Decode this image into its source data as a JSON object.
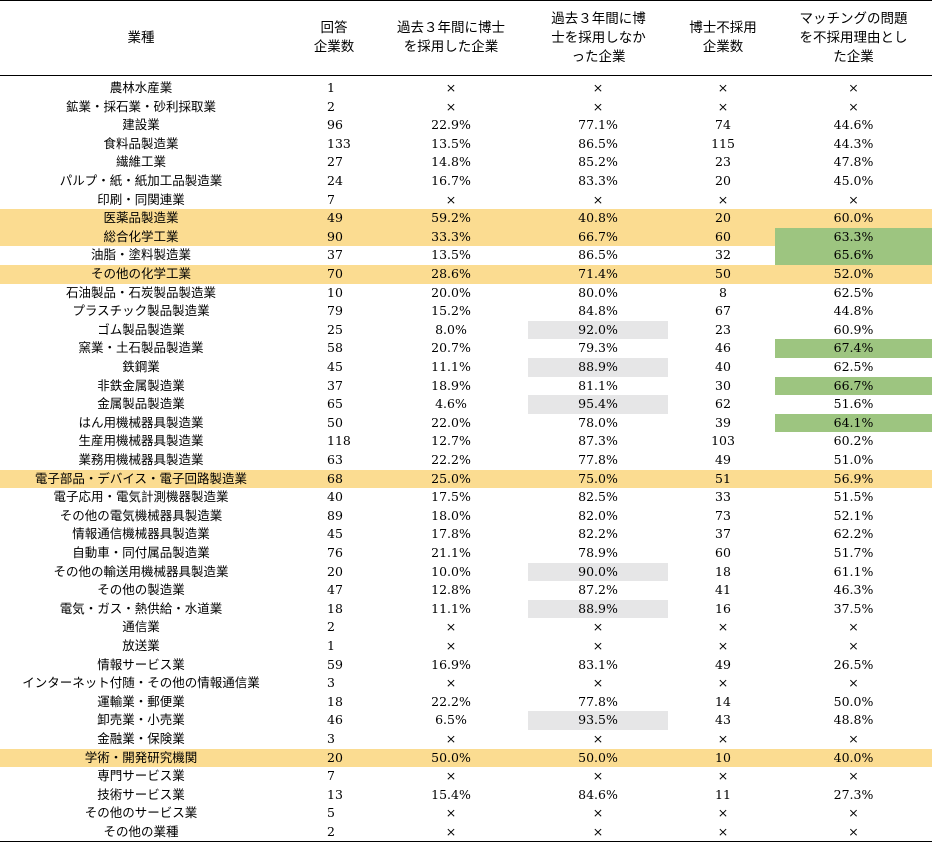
{
  "headers": {
    "industry": "業種",
    "respondents": "回答\n企業数",
    "hired": "過去３年間に博士\nを採用した企業",
    "not_hired": "過去３年間に博\n士を採用しなか\nった企業",
    "non_hiring_count": "博士不採用\n企業数",
    "matching_reason": "マッチングの問題\nを不採用理由とし\nた企業"
  },
  "colors": {
    "highlight_row": "#fbdc91",
    "gray_cell": "#e6e6e7",
    "green_cell": "#9dc580"
  },
  "rows": [
    {
      "name": "農林水産業",
      "n": "1",
      "hired": "×",
      "not_hired": "×",
      "nh": "×",
      "match": "×"
    },
    {
      "name": "鉱業・採石業・砂利採取業",
      "n": "2",
      "hired": "×",
      "not_hired": "×",
      "nh": "×",
      "match": "×"
    },
    {
      "name": "建設業",
      "n": "96",
      "hired": "22.9%",
      "not_hired": "77.1%",
      "nh": "74",
      "match": "44.6%"
    },
    {
      "name": "食料品製造業",
      "n": "133",
      "hired": "13.5%",
      "not_hired": "86.5%",
      "nh": "115",
      "match": "44.3%"
    },
    {
      "name": "繊維工業",
      "n": "27",
      "hired": "14.8%",
      "not_hired": "85.2%",
      "nh": "23",
      "match": "47.8%"
    },
    {
      "name": "パルプ・紙・紙加工品製造業",
      "n": "24",
      "hired": "16.7%",
      "not_hired": "83.3%",
      "nh": "20",
      "match": "45.0%"
    },
    {
      "name": "印刷・同関連業",
      "n": "7",
      "hired": "×",
      "not_hired": "×",
      "nh": "×",
      "match": "×"
    },
    {
      "name": "医薬品製造業",
      "n": "49",
      "hired": "59.2%",
      "not_hired": "40.8%",
      "nh": "20",
      "match": "60.0%",
      "hl": true
    },
    {
      "name": "総合化学工業",
      "n": "90",
      "hired": "33.3%",
      "not_hired": "66.7%",
      "nh": "60",
      "match": "63.3%",
      "hl": true,
      "match_color": "green"
    },
    {
      "name": "油脂・塗料製造業",
      "n": "37",
      "hired": "13.5%",
      "not_hired": "86.5%",
      "nh": "32",
      "match": "65.6%",
      "match_color": "green"
    },
    {
      "name": "その他の化学工業",
      "n": "70",
      "hired": "28.6%",
      "not_hired": "71.4%",
      "nh": "50",
      "match": "52.0%",
      "hl": true
    },
    {
      "name": "石油製品・石炭製品製造業",
      "n": "10",
      "hired": "20.0%",
      "not_hired": "80.0%",
      "nh": "8",
      "match": "62.5%"
    },
    {
      "name": "プラスチック製品製造業",
      "n": "79",
      "hired": "15.2%",
      "not_hired": "84.8%",
      "nh": "67",
      "match": "44.8%"
    },
    {
      "name": "ゴム製品製造業",
      "n": "25",
      "hired": "8.0%",
      "not_hired": "92.0%",
      "nh": "23",
      "match": "60.9%",
      "nh_color": "gray"
    },
    {
      "name": "窯業・土石製品製造業",
      "n": "58",
      "hired": "20.7%",
      "not_hired": "79.3%",
      "nh": "46",
      "match": "67.4%",
      "match_color": "green"
    },
    {
      "name": "鉄鋼業",
      "n": "45",
      "hired": "11.1%",
      "not_hired": "88.9%",
      "nh": "40",
      "match": "62.5%",
      "nh_color": "gray"
    },
    {
      "name": "非鉄金属製造業",
      "n": "37",
      "hired": "18.9%",
      "not_hired": "81.1%",
      "nh": "30",
      "match": "66.7%",
      "match_color": "green"
    },
    {
      "name": "金属製品製造業",
      "n": "65",
      "hired": "4.6%",
      "not_hired": "95.4%",
      "nh": "62",
      "match": "51.6%",
      "nh_color": "gray"
    },
    {
      "name": "はん用機械器具製造業",
      "n": "50",
      "hired": "22.0%",
      "not_hired": "78.0%",
      "nh": "39",
      "match": "64.1%",
      "match_color": "green"
    },
    {
      "name": "生産用機械器具製造業",
      "n": "118",
      "hired": "12.7%",
      "not_hired": "87.3%",
      "nh": "103",
      "match": "60.2%"
    },
    {
      "name": "業務用機械器具製造業",
      "n": "63",
      "hired": "22.2%",
      "not_hired": "77.8%",
      "nh": "49",
      "match": "51.0%"
    },
    {
      "name": "電子部品・デバイス・電子回路製造業",
      "n": "68",
      "hired": "25.0%",
      "not_hired": "75.0%",
      "nh": "51",
      "match": "56.9%",
      "hl": true
    },
    {
      "name": "電子応用・電気計測機器製造業",
      "n": "40",
      "hired": "17.5%",
      "not_hired": "82.5%",
      "nh": "33",
      "match": "51.5%"
    },
    {
      "name": "その他の電気機械器具製造業",
      "n": "89",
      "hired": "18.0%",
      "not_hired": "82.0%",
      "nh": "73",
      "match": "52.1%"
    },
    {
      "name": "情報通信機械器具製造業",
      "n": "45",
      "hired": "17.8%",
      "not_hired": "82.2%",
      "nh": "37",
      "match": "62.2%"
    },
    {
      "name": "自動車・同付属品製造業",
      "n": "76",
      "hired": "21.1%",
      "not_hired": "78.9%",
      "nh": "60",
      "match": "51.7%"
    },
    {
      "name": "その他の輸送用機械器具製造業",
      "n": "20",
      "hired": "10.0%",
      "not_hired": "90.0%",
      "nh": "18",
      "match": "61.1%",
      "nh_color": "gray"
    },
    {
      "name": "その他の製造業",
      "n": "47",
      "hired": "12.8%",
      "not_hired": "87.2%",
      "nh": "41",
      "match": "46.3%"
    },
    {
      "name": "電気・ガス・熱供給・水道業",
      "n": "18",
      "hired": "11.1%",
      "not_hired": "88.9%",
      "nh": "16",
      "match": "37.5%",
      "nh_color": "gray"
    },
    {
      "name": "通信業",
      "n": "2",
      "hired": "×",
      "not_hired": "×",
      "nh": "×",
      "match": "×"
    },
    {
      "name": "放送業",
      "n": "1",
      "hired": "×",
      "not_hired": "×",
      "nh": "×",
      "match": "×"
    },
    {
      "name": "情報サービス業",
      "n": "59",
      "hired": "16.9%",
      "not_hired": "83.1%",
      "nh": "49",
      "match": "26.5%"
    },
    {
      "name": "インターネット付随・その他の情報通信業",
      "n": "3",
      "hired": "×",
      "not_hired": "×",
      "nh": "×",
      "match": "×"
    },
    {
      "name": "運輸業・郵便業",
      "n": "18",
      "hired": "22.2%",
      "not_hired": "77.8%",
      "nh": "14",
      "match": "50.0%"
    },
    {
      "name": "卸売業・小売業",
      "n": "46",
      "hired": "6.5%",
      "not_hired": "93.5%",
      "nh": "43",
      "match": "48.8%",
      "nh_color": "gray"
    },
    {
      "name": "金融業・保険業",
      "n": "3",
      "hired": "×",
      "not_hired": "×",
      "nh": "×",
      "match": "×"
    },
    {
      "name": "学術・開発研究機関",
      "n": "20",
      "hired": "50.0%",
      "not_hired": "50.0%",
      "nh": "10",
      "match": "40.0%",
      "hl": true
    },
    {
      "name": "専門サービス業",
      "n": "7",
      "hired": "×",
      "not_hired": "×",
      "nh": "×",
      "match": "×"
    },
    {
      "name": "技術サービス業",
      "n": "13",
      "hired": "15.4%",
      "not_hired": "84.6%",
      "nh": "11",
      "match": "27.3%"
    },
    {
      "name": "その他のサービス業",
      "n": "5",
      "hired": "×",
      "not_hired": "×",
      "nh": "×",
      "match": "×"
    },
    {
      "name": "その他の業種",
      "n": "2",
      "hired": "×",
      "not_hired": "×",
      "nh": "×",
      "match": "×"
    }
  ]
}
